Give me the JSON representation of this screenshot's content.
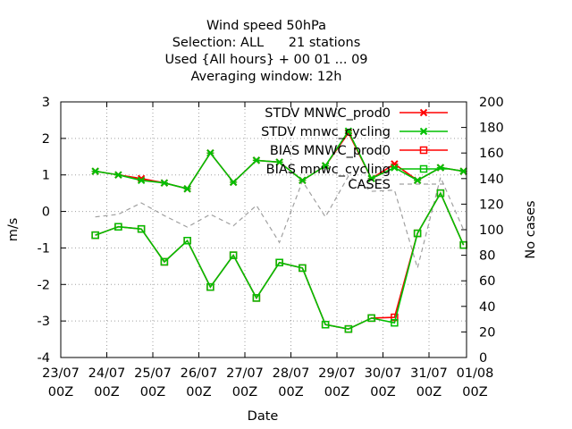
{
  "chart_data": {
    "type": "line",
    "title_lines": [
      "Wind speed 50hPa",
      "Selection: ALL      21 stations",
      "Used {All hours} + 00 01 ... 09",
      "Averaging window: 12h"
    ],
    "xlabel": "Date",
    "ylabel": "m/s",
    "y2label": "No cases",
    "xlim": [
      0,
      192
    ],
    "ylim": [
      -4,
      3
    ],
    "y2lim": [
      0,
      200
    ],
    "x_ticks": [
      {
        "x": 0,
        "line1": "23/07",
        "line2": "00Z"
      },
      {
        "x": 24,
        "line1": "24/07",
        "line2": "00Z"
      },
      {
        "x": 48,
        "line1": "25/07",
        "line2": "00Z"
      },
      {
        "x": 72,
        "line1": "26/07",
        "line2": "00Z"
      },
      {
        "x": 96,
        "line1": "27/07",
        "line2": "00Z"
      },
      {
        "x": 120,
        "line1": "28/07",
        "line2": "00Z"
      },
      {
        "x": 144,
        "line1": "29/07",
        "line2": "00Z"
      },
      {
        "x": 168,
        "line1": "30/07",
        "line2": "00Z"
      },
      {
        "x": 192,
        "line1": "31/07",
        "line2": "00Z"
      },
      {
        "x": 216,
        "line1": "01/08",
        "line2": "00Z"
      }
    ],
    "y_ticks": [
      "-4",
      "-3",
      "-2",
      "-1",
      "0",
      "1",
      "2",
      "3"
    ],
    "y2_ticks": [
      "0",
      "20",
      "40",
      "60",
      "80",
      "100",
      "120",
      "140",
      "160",
      "180",
      "200"
    ],
    "grid": true,
    "legend_position": "top-right",
    "x": [
      18,
      30,
      42,
      54,
      66,
      78,
      90,
      102,
      114,
      126,
      138,
      150,
      162,
      174,
      186,
      198,
      210
    ],
    "series": [
      {
        "name": "STDV MNWC_prod0",
        "axis": "y1",
        "color": "#ff0000",
        "marker": "x-cross",
        "values": [
          1.1,
          1.0,
          0.9,
          0.78,
          0.62,
          1.6,
          0.8,
          1.4,
          1.35,
          0.85,
          1.25,
          2.15,
          0.9,
          1.3,
          0.85,
          1.2,
          1.1
        ]
      },
      {
        "name": "STDV mnwc_cycling",
        "axis": "y1",
        "color": "#00c000",
        "marker": "x-cross",
        "values": [
          1.1,
          1.0,
          0.85,
          0.78,
          0.62,
          1.6,
          0.8,
          1.4,
          1.35,
          0.85,
          1.25,
          2.2,
          0.9,
          1.2,
          0.85,
          1.2,
          1.1
        ]
      },
      {
        "name": "BIAS MNWC_prod0",
        "axis": "y1",
        "color": "#ff0000",
        "marker": "square",
        "values": [
          -0.65,
          -0.42,
          -0.48,
          -1.38,
          -0.8,
          -2.07,
          -1.2,
          -2.37,
          -1.4,
          -1.55,
          -3.1,
          -3.22,
          -2.92,
          -2.9,
          -0.6,
          0.5,
          -0.92
        ]
      },
      {
        "name": "BIAS mnwc_cycling",
        "axis": "y1",
        "color": "#00c000",
        "marker": "square",
        "values": [
          -0.65,
          -0.42,
          -0.48,
          -1.38,
          -0.8,
          -2.07,
          -1.2,
          -2.37,
          -1.4,
          -1.55,
          -3.1,
          -3.22,
          -2.92,
          -3.05,
          -0.6,
          0.5,
          -0.92
        ]
      },
      {
        "name": "CASES",
        "axis": "y2",
        "color": "#a0a0a0",
        "marker": "none",
        "dashed": true,
        "values": [
          110,
          112,
          121,
          111,
          102,
          112,
          103,
          119,
          90,
          138,
          110,
          142,
          130,
          131,
          70,
          141,
          100
        ]
      }
    ]
  }
}
